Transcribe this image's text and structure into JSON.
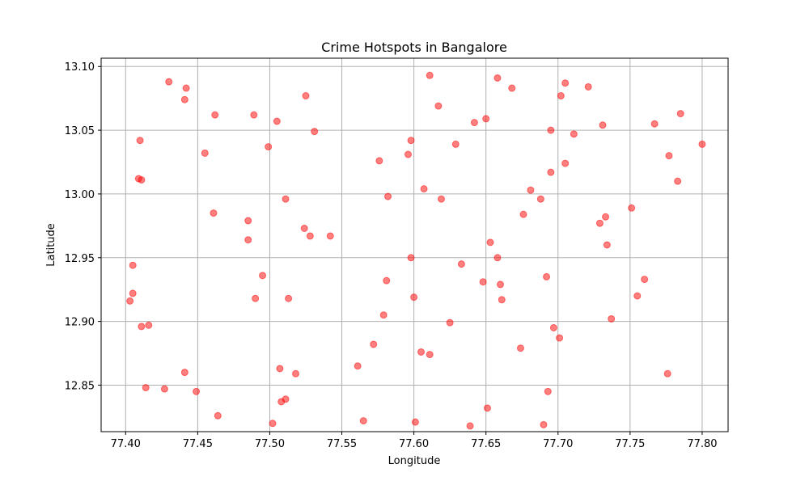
{
  "chart_data": {
    "type": "scatter",
    "title": "Crime Hotspots in Bangalore",
    "xlabel": "Longitude",
    "ylabel": "Latitude",
    "xlim": [
      77.383,
      77.818
    ],
    "ylim": [
      12.8135,
      13.1065
    ],
    "xticks": [
      77.4,
      77.45,
      77.5,
      77.55,
      77.6,
      77.65,
      77.7,
      77.75,
      77.8
    ],
    "xtick_labels": [
      "77.40",
      "77.45",
      "77.50",
      "77.55",
      "77.60",
      "77.65",
      "77.70",
      "77.75",
      "77.80"
    ],
    "yticks": [
      12.85,
      12.9,
      12.95,
      13.0,
      13.05,
      13.1
    ],
    "ytick_labels": [
      "12.85",
      "12.90",
      "12.95",
      "13.00",
      "13.05",
      "13.10"
    ],
    "grid": true,
    "marker_color": "#ff0000",
    "marker_alpha": 0.5,
    "points": [
      [
        77.43,
        13.088
      ],
      [
        77.442,
        13.083
      ],
      [
        77.441,
        13.074
      ],
      [
        77.41,
        13.042
      ],
      [
        77.455,
        13.032
      ],
      [
        77.462,
        13.062
      ],
      [
        77.489,
        13.062
      ],
      [
        77.505,
        13.057
      ],
      [
        77.525,
        13.077
      ],
      [
        77.531,
        13.049
      ],
      [
        77.499,
        13.037
      ],
      [
        77.611,
        13.093
      ],
      [
        77.658,
        13.091
      ],
      [
        77.668,
        13.083
      ],
      [
        77.705,
        13.087
      ],
      [
        77.721,
        13.084
      ],
      [
        77.702,
        13.077
      ],
      [
        77.617,
        13.069
      ],
      [
        77.642,
        13.056
      ],
      [
        77.65,
        13.059
      ],
      [
        77.695,
        13.05
      ],
      [
        77.711,
        13.047
      ],
      [
        77.731,
        13.054
      ],
      [
        77.767,
        13.055
      ],
      [
        77.785,
        13.063
      ],
      [
        77.598,
        13.042
      ],
      [
        77.596,
        13.031
      ],
      [
        77.576,
        13.026
      ],
      [
        77.629,
        13.039
      ],
      [
        77.705,
        13.024
      ],
      [
        77.695,
        13.017
      ],
      [
        77.777,
        13.03
      ],
      [
        77.8,
        13.039
      ],
      [
        77.783,
        13.01
      ],
      [
        77.409,
        13.012
      ],
      [
        77.411,
        13.011
      ],
      [
        77.461,
        12.985
      ],
      [
        77.485,
        12.979
      ],
      [
        77.511,
        12.996
      ],
      [
        77.582,
        12.998
      ],
      [
        77.607,
        13.004
      ],
      [
        77.619,
        12.996
      ],
      [
        77.681,
        13.003
      ],
      [
        77.688,
        12.996
      ],
      [
        77.676,
        12.984
      ],
      [
        77.751,
        12.989
      ],
      [
        77.733,
        12.982
      ],
      [
        77.729,
        12.977
      ],
      [
        77.524,
        12.973
      ],
      [
        77.528,
        12.967
      ],
      [
        77.542,
        12.967
      ],
      [
        77.485,
        12.964
      ],
      [
        77.653,
        12.962
      ],
      [
        77.734,
        12.96
      ],
      [
        77.658,
        12.95
      ],
      [
        77.598,
        12.95
      ],
      [
        77.633,
        12.945
      ],
      [
        77.405,
        12.944
      ],
      [
        77.495,
        12.936
      ],
      [
        77.581,
        12.932
      ],
      [
        77.648,
        12.931
      ],
      [
        77.66,
        12.929
      ],
      [
        77.692,
        12.935
      ],
      [
        77.76,
        12.933
      ],
      [
        77.405,
        12.922
      ],
      [
        77.403,
        12.916
      ],
      [
        77.49,
        12.918
      ],
      [
        77.513,
        12.918
      ],
      [
        77.6,
        12.919
      ],
      [
        77.661,
        12.917
      ],
      [
        77.755,
        12.92
      ],
      [
        77.579,
        12.905
      ],
      [
        77.625,
        12.899
      ],
      [
        77.737,
        12.902
      ],
      [
        77.411,
        12.896
      ],
      [
        77.416,
        12.897
      ],
      [
        77.697,
        12.895
      ],
      [
        77.701,
        12.887
      ],
      [
        77.572,
        12.882
      ],
      [
        77.674,
        12.879
      ],
      [
        77.605,
        12.876
      ],
      [
        77.611,
        12.874
      ],
      [
        77.561,
        12.865
      ],
      [
        77.507,
        12.863
      ],
      [
        77.518,
        12.859
      ],
      [
        77.441,
        12.86
      ],
      [
        77.776,
        12.859
      ],
      [
        77.414,
        12.848
      ],
      [
        77.427,
        12.847
      ],
      [
        77.449,
        12.845
      ],
      [
        77.693,
        12.845
      ],
      [
        77.511,
        12.839
      ],
      [
        77.508,
        12.837
      ],
      [
        77.464,
        12.826
      ],
      [
        77.651,
        12.832
      ],
      [
        77.565,
        12.822
      ],
      [
        77.601,
        12.821
      ],
      [
        77.502,
        12.82
      ],
      [
        77.639,
        12.818
      ],
      [
        77.69,
        12.819
      ]
    ]
  }
}
